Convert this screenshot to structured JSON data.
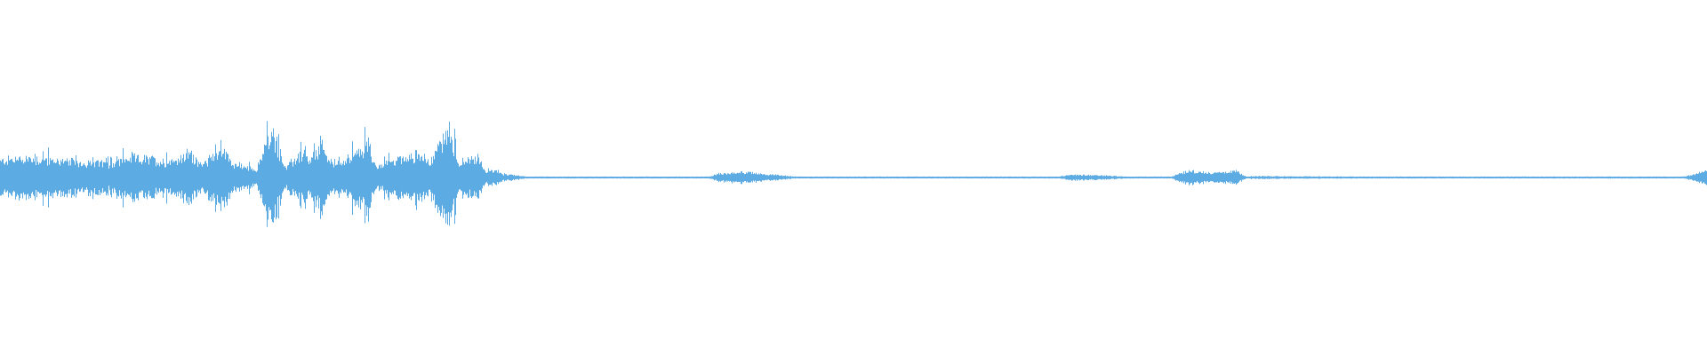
{
  "chart_data": {
    "type": "area",
    "description_of_axes": "",
    "xlabel": "",
    "ylabel": "",
    "ylim": [
      -1,
      1
    ],
    "xlim_percent_of_duration": [
      0,
      100
    ],
    "grid": false,
    "legend": "none",
    "color": "#5dabe3",
    "background": "#ffffff",
    "envelope": [
      [
        0,
        0.11
      ],
      [
        1.28,
        0.135
      ],
      [
        3.83,
        0.11
      ],
      [
        6.38,
        0.092
      ],
      [
        7.65,
        0.135
      ],
      [
        9.57,
        0.11
      ],
      [
        10.52,
        0.123
      ],
      [
        11.16,
        0.17
      ],
      [
        11.8,
        0.074
      ],
      [
        12.44,
        0.153
      ],
      [
        13.07,
        0.184
      ],
      [
        13.71,
        0.092
      ],
      [
        14.99,
        0.049
      ],
      [
        15.63,
        0.245
      ],
      [
        16.07,
        0.276
      ],
      [
        16.71,
        0.061
      ],
      [
        17.54,
        0.153
      ],
      [
        18.18,
        0.11
      ],
      [
        18.81,
        0.215
      ],
      [
        19.45,
        0.092
      ],
      [
        20.41,
        0.135
      ],
      [
        21.05,
        0.17
      ],
      [
        21.56,
        0.245
      ],
      [
        22.0,
        0.061
      ],
      [
        22.96,
        0.123
      ],
      [
        24.55,
        0.153
      ],
      [
        25.19,
        0.11
      ],
      [
        25.7,
        0.215
      ],
      [
        26.34,
        0.337
      ],
      [
        26.79,
        0.092
      ],
      [
        27.42,
        0.123
      ],
      [
        28.06,
        0.135
      ],
      [
        28.44,
        0.037
      ],
      [
        29.02,
        0.049
      ],
      [
        29.46,
        0.018
      ],
      [
        29.97,
        0.018
      ],
      [
        30.48,
        0.012
      ],
      [
        30.93,
        0.003
      ],
      [
        41.45,
        0.003
      ],
      [
        42.09,
        0.025
      ],
      [
        43.37,
        0.037
      ],
      [
        44.64,
        0.025
      ],
      [
        46.56,
        0.006
      ],
      [
        47.19,
        0.003
      ],
      [
        61.86,
        0.003
      ],
      [
        62.82,
        0.018
      ],
      [
        64.41,
        0.015
      ],
      [
        66.65,
        0.003
      ],
      [
        68.56,
        0.003
      ],
      [
        69.2,
        0.031
      ],
      [
        69.83,
        0.049
      ],
      [
        70.15,
        0.037
      ],
      [
        71.43,
        0.031
      ],
      [
        72.39,
        0.043
      ],
      [
        73.02,
        0.006
      ],
      [
        73.34,
        0.009
      ],
      [
        79.72,
        0.006
      ],
      [
        80.36,
        0.003
      ],
      [
        93.43,
        0.003
      ],
      [
        94.39,
        0.006
      ],
      [
        95.66,
        0.003
      ],
      [
        98.53,
        0.003
      ],
      [
        100,
        0.043
      ]
    ]
  }
}
